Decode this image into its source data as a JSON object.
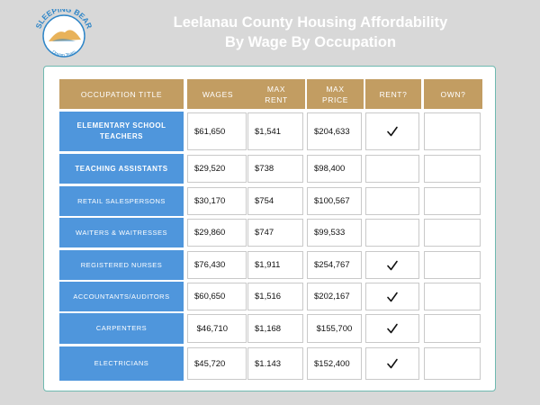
{
  "logo": {
    "text_top": "SLEEPING BEAR",
    "text_bottom": "Dream Team"
  },
  "title": {
    "line1": "Leelanau County Housing Affordability",
    "line2": "By Wage By Occupation"
  },
  "table": {
    "headers": {
      "occupation": "OCCUPATION TITLE",
      "wages": "WAGES",
      "max_rent": "MAX\nRENT",
      "max_price": "MAX\nPRICE",
      "rent": "RENT?",
      "own": "OWN?"
    },
    "rows": [
      {
        "occupation": "ELEMENTARY SCHOOL TEACHERS",
        "wages": "$61,650",
        "max_rent": "$1,541",
        "max_price": "$204,633",
        "rent": true,
        "own": false
      },
      {
        "occupation": "TEACHING ASSISTANTS",
        "wages": "$29,520",
        "max_rent": "$738",
        "max_price": "$98,400",
        "rent": false,
        "own": false
      },
      {
        "occupation": "RETAIL SALESPERSONS",
        "wages": "$30,170",
        "max_rent": "$754",
        "max_price": "$100,567",
        "rent": false,
        "own": false
      },
      {
        "occupation": "WAITERS & WAITRESSES",
        "wages": "$29,860",
        "max_rent": "$747",
        "max_price": "$99,533",
        "rent": false,
        "own": false
      },
      {
        "occupation": "REGISTERED NURSES",
        "wages": "$76,430",
        "max_rent": "$1,911",
        "max_price": "$254,767",
        "rent": true,
        "own": false
      },
      {
        "occupation": "ACCOUNTANTS/AUDITORS",
        "wages": "$60,650",
        "max_rent": "$1,516",
        "max_price": "$202,167",
        "rent": true,
        "own": false
      },
      {
        "occupation": "CARPENTERS",
        "wages": " $46,710",
        "max_rent": "$1,168",
        "max_price": " $155,700",
        "rent": true,
        "own": false
      },
      {
        "occupation": "ELECTRICIANS",
        "wages": "$45,720",
        "max_rent": "$1.143",
        "max_price": "$152,400",
        "rent": true,
        "own": false
      }
    ]
  },
  "colors": {
    "background": "#d8d8d8",
    "header": "#c29d62",
    "occupation": "#4f96dc",
    "card_border": "#6fb9b0",
    "logo_blue": "#2f86c8",
    "logo_gold": "#e8b25a"
  }
}
